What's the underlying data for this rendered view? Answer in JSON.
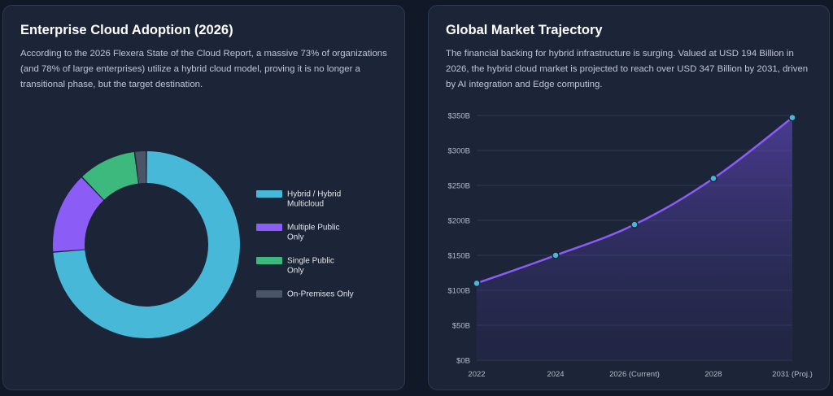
{
  "adoption": {
    "title": "Enterprise Cloud Adoption (2026)",
    "description": "According to the 2026 Flexera State of the Cloud Report, a massive 73% of organizations (and 78% of large enterprises) utilize a hybrid cloud model, proving it is no longer a transitional phase, but the target destination."
  },
  "market": {
    "title": "Global Market Trajectory",
    "description": "The financial backing for hybrid infrastructure is surging. Valued at USD 194 Billion in 2026, the hybrid cloud market is projected to reach over USD 347 Billion by 2031, driven by AI integration and Edge computing."
  },
  "chart_data": [
    {
      "type": "pie",
      "title": "Enterprise Cloud Adoption (2026)",
      "categories": [
        "Hybrid / Hybrid Multicloud",
        "Multiple Public Only",
        "Single Public Only",
        "On-Premises Only"
      ],
      "values": [
        73,
        14,
        10,
        2
      ],
      "colors": [
        "#48b8d8",
        "#8b5cf6",
        "#3db97e",
        "#4a5568"
      ],
      "legend_lines": [
        [
          "Hybrid / Hybrid",
          "Multicloud"
        ],
        [
          "Multiple Public",
          "Only"
        ],
        [
          "Single Public",
          "Only"
        ],
        [
          "On-Premises Only"
        ]
      ],
      "legend_position": "right",
      "donut": true
    },
    {
      "type": "area",
      "title": "Global Market Trajectory",
      "categories": [
        "2022",
        "2024",
        "2026 (Current)",
        "2028",
        "2031 (Proj.)"
      ],
      "values": [
        110,
        150,
        194,
        260,
        347
      ],
      "ylim": [
        0,
        350
      ],
      "yticks": [
        0,
        50,
        100,
        150,
        200,
        250,
        300,
        350
      ],
      "ytick_labels": [
        "$0B",
        "$50B",
        "$100B",
        "$150B",
        "$200B",
        "$250B",
        "$300B",
        "$350B"
      ],
      "line_color": "#8b5cf6",
      "point_color": "#48b8d8",
      "grid": true
    }
  ]
}
